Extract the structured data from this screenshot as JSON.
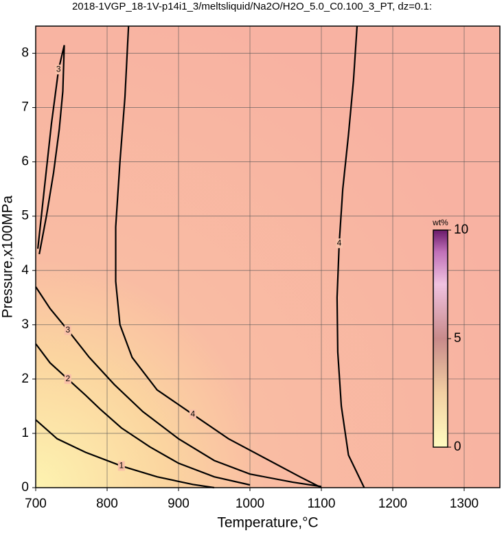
{
  "chart_data": {
    "type": "contour",
    "title": "2018-1VGP_18-1V-p14i1_3/meltsliquid/Na2O/H2O_5.0_C0.100_3_PT, dz=0.1:",
    "x_label": "Temperature,°C",
    "y_label": "Pressure,x100MPa",
    "xlim": [
      700,
      1350
    ],
    "ylim": [
      0,
      8.5
    ],
    "xticks": [
      700,
      800,
      900,
      1000,
      1100,
      1200,
      1300
    ],
    "yticks": [
      0,
      1,
      2,
      3,
      4,
      5,
      6,
      7,
      8
    ],
    "grid": true,
    "series": [
      {
        "name": "1",
        "color": "#000000",
        "x": [
          700,
          730,
          770,
          820,
          870,
          920,
          950
        ],
        "y": [
          1.25,
          0.9,
          0.65,
          0.4,
          0.2,
          0.06,
          0
        ]
      },
      {
        "name": "2",
        "color": "#000000",
        "x": [
          700,
          720,
          745,
          770,
          790,
          820,
          860,
          900,
          950,
          1000
        ],
        "y": [
          2.65,
          2.3,
          2.0,
          1.7,
          1.45,
          1.1,
          0.75,
          0.45,
          0.2,
          0.05
        ]
      },
      {
        "name": "3",
        "color": "#000000",
        "x": [
          700,
          720,
          745,
          775,
          810,
          850,
          900,
          950,
          1000,
          1060,
          1100
        ],
        "y": [
          3.7,
          3.3,
          2.9,
          2.4,
          1.9,
          1.4,
          0.9,
          0.5,
          0.25,
          0.1,
          0.02
        ]
      },
      {
        "name": "3",
        "color": "#000000",
        "x": [
          703,
          712,
          722,
          732,
          740,
          738,
          733,
          725,
          715,
          705
        ],
        "y": [
          4.4,
          5.5,
          6.7,
          7.7,
          8.15,
          7.3,
          6.6,
          5.8,
          5.0,
          4.3
        ]
      },
      {
        "name": "4",
        "color": "#000000",
        "x": [
          830,
          825,
          818,
          812,
          812,
          818,
          835,
          870,
          920,
          970,
          1020,
          1070,
          1100
        ],
        "y": [
          8.5,
          7.2,
          6.0,
          4.8,
          3.8,
          3.0,
          2.4,
          1.8,
          1.35,
          0.9,
          0.55,
          0.2,
          0
        ]
      },
      {
        "name": "4",
        "color": "#000000",
        "x": [
          1150,
          1145,
          1138,
          1130,
          1125,
          1122,
          1123,
          1128,
          1138,
          1160
        ],
        "y": [
          8.5,
          7.5,
          6.5,
          5.5,
          4.5,
          3.5,
          2.5,
          1.5,
          0.6,
          0
        ]
      }
    ],
    "colorbar": {
      "label": "wt%",
      "lim": [
        0,
        10
      ],
      "ticks": [
        0,
        5,
        10
      ]
    }
  }
}
